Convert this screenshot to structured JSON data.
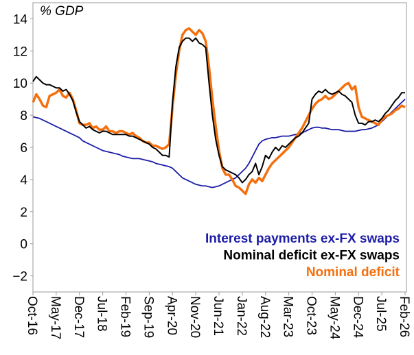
{
  "chart_data": {
    "type": "line",
    "title": "% GDP",
    "categories": [
      "Oct-16",
      null,
      null,
      null,
      null,
      null,
      null,
      "May-17",
      null,
      null,
      null,
      null,
      null,
      null,
      "Dec-17",
      null,
      null,
      null,
      null,
      null,
      null,
      "Jul-18",
      null,
      null,
      null,
      null,
      null,
      null,
      "Feb-19",
      null,
      null,
      null,
      null,
      null,
      null,
      "Sep-19",
      null,
      null,
      null,
      null,
      null,
      null,
      "Apr-20",
      null,
      null,
      null,
      null,
      null,
      null,
      "Nov-20",
      null,
      null,
      null,
      null,
      null,
      null,
      "Jun-21",
      null,
      null,
      null,
      null,
      null,
      null,
      "Jan-22",
      null,
      null,
      null,
      null,
      null,
      null,
      "Aug-22",
      null,
      null,
      null,
      null,
      null,
      null,
      "Mar-23",
      null,
      null,
      null,
      null,
      null,
      null,
      "Oct-23",
      null,
      null,
      null,
      null,
      null,
      null,
      "May-24",
      null,
      null,
      null,
      null,
      null,
      null,
      "Dec-24",
      null,
      null,
      null,
      null,
      null,
      null,
      "Jul-25",
      null,
      null,
      null,
      null,
      null,
      null,
      "Feb-26"
    ],
    "series": [
      {
        "name": "Interest payments ex-FX swaps",
        "color": "#1c1ca8",
        "values": [
          7.9,
          7.85,
          7.8,
          7.7,
          7.6,
          7.5,
          7.4,
          7.3,
          7.2,
          7.1,
          7.0,
          6.9,
          6.8,
          6.7,
          6.6,
          6.4,
          6.3,
          6.2,
          6.1,
          6.0,
          5.9,
          5.8,
          5.75,
          5.7,
          5.65,
          5.6,
          5.55,
          5.45,
          5.4,
          5.35,
          5.3,
          5.3,
          5.3,
          5.25,
          5.2,
          5.15,
          5.1,
          5.0,
          4.95,
          4.9,
          4.85,
          4.8,
          4.7,
          4.5,
          4.3,
          4.1,
          4.0,
          3.9,
          3.8,
          3.7,
          3.65,
          3.6,
          3.6,
          3.55,
          3.5,
          3.55,
          3.6,
          3.7,
          3.8,
          3.9,
          4.0,
          4.1,
          4.3,
          4.5,
          4.7,
          5.0,
          5.4,
          5.8,
          6.2,
          6.4,
          6.5,
          6.55,
          6.6,
          6.6,
          6.65,
          6.7,
          6.7,
          6.7,
          6.75,
          6.8,
          6.85,
          6.9,
          7.0,
          7.1,
          7.2,
          7.25,
          7.25,
          7.2,
          7.2,
          7.15,
          7.1,
          7.1,
          7.1,
          7.05,
          7.0,
          7.0,
          7.0,
          7.0,
          7.05,
          7.1,
          7.1,
          7.15,
          7.2,
          7.3,
          7.4,
          7.6,
          7.8,
          8.0,
          8.2,
          8.4,
          8.6,
          8.8,
          9.0
        ]
      },
      {
        "name": "Nominal deficit ex-FX swaps",
        "color": "#000000",
        "values": [
          10.1,
          10.4,
          10.2,
          10.0,
          9.9,
          9.9,
          9.8,
          9.7,
          9.7,
          9.5,
          9.6,
          9.3,
          8.9,
          8.2,
          7.6,
          7.4,
          7.2,
          7.3,
          7.1,
          7.0,
          6.9,
          7.0,
          7.0,
          6.9,
          6.8,
          6.8,
          6.8,
          6.8,
          6.8,
          6.7,
          6.7,
          6.6,
          6.5,
          6.4,
          6.3,
          6.2,
          6.0,
          5.9,
          5.7,
          5.5,
          5.5,
          5.4,
          8.8,
          11.0,
          12.2,
          12.6,
          12.8,
          12.8,
          12.6,
          12.8,
          12.5,
          12.4,
          12.2,
          10.0,
          8.0,
          6.5,
          5.5,
          4.8,
          4.6,
          4.5,
          4.4,
          4.3,
          4.1,
          3.8,
          4.0,
          4.3,
          4.5,
          5.0,
          4.3,
          4.8,
          5.5,
          5.3,
          5.7,
          6.0,
          5.8,
          6.1,
          6.0,
          6.2,
          6.4,
          6.6,
          6.7,
          6.9,
          7.2,
          7.5,
          9.0,
          9.3,
          9.5,
          9.4,
          9.6,
          9.4,
          9.3,
          9.4,
          9.5,
          9.3,
          9.2,
          9.0,
          8.8,
          8.0,
          7.5,
          7.5,
          7.4,
          7.6,
          7.6,
          7.7,
          7.6,
          7.8,
          8.1,
          8.3,
          8.6,
          8.9,
          9.1,
          9.4,
          9.4
        ]
      },
      {
        "name": "Nominal deficit",
        "color": "#f4700e",
        "values": [
          8.8,
          9.3,
          9.0,
          8.6,
          8.5,
          9.2,
          9.3,
          9.4,
          9.6,
          9.2,
          9.1,
          9.4,
          9.0,
          8.3,
          7.5,
          7.4,
          7.4,
          7.5,
          7.2,
          7.3,
          7.1,
          7.1,
          7.3,
          7.0,
          7.0,
          6.9,
          7.0,
          7.0,
          6.9,
          6.8,
          6.9,
          6.7,
          6.6,
          6.4,
          6.3,
          6.3,
          6.1,
          6.1,
          6.0,
          5.9,
          6.0,
          6.2,
          8.5,
          10.5,
          12.0,
          13.0,
          13.3,
          13.4,
          13.2,
          13.0,
          13.3,
          13.1,
          12.6,
          11.0,
          9.0,
          7.3,
          5.8,
          4.7,
          4.3,
          4.3,
          4.0,
          3.6,
          3.5,
          3.3,
          3.1,
          3.7,
          4.0,
          3.8,
          4.1,
          3.9,
          4.3,
          4.7,
          5.0,
          5.2,
          5.4,
          5.6,
          5.8,
          6.0,
          6.3,
          6.6,
          6.9,
          7.2,
          7.6,
          8.0,
          8.4,
          8.7,
          8.9,
          9.0,
          9.2,
          9.0,
          9.1,
          9.3,
          9.5,
          9.7,
          9.9,
          10.0,
          9.6,
          9.8,
          8.5,
          7.9,
          7.8,
          7.7,
          7.6,
          7.5,
          7.4,
          7.7,
          7.9,
          8.0,
          8.1,
          8.3,
          8.4,
          8.6,
          8.5
        ]
      }
    ],
    "ylim": [
      -3,
      15
    ],
    "yticks": [
      {
        "value": -2,
        "label": "−2"
      },
      0,
      2,
      4,
      6,
      8,
      10,
      12,
      14
    ],
    "grid": false
  }
}
